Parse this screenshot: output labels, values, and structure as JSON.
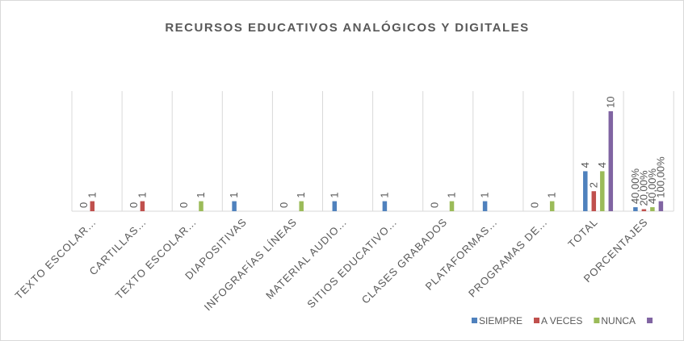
{
  "chart_data": {
    "type": "bar",
    "title": "RECURSOS EDUCATIVOS ANALÓGICOS Y DIGITALES",
    "categories": [
      "TEXTO ESCOLAR…",
      "CARTILLAS…",
      "TEXTO ESCOLAR…",
      "DIAPOSITIVAS",
      "INFOGRAFÍAS LÍNEAS",
      "MATERIAL AUDIO…",
      "SITIOS EDUCATIVO…",
      "CLASES GRABADOS",
      "PLATAFORMAS…",
      "PROGRAMAS DE…",
      "TOTAL",
      "PORCENTAJES"
    ],
    "series": [
      {
        "name": "SIEMPRE",
        "color": "#4f81bd",
        "values": [
          0,
          0,
          0,
          1,
          0,
          1,
          1,
          0,
          1,
          0,
          4,
          0.4
        ],
        "value_labels": [
          "0",
          "0",
          "0",
          "1",
          "0",
          "1",
          "1",
          "0",
          "1",
          "0",
          "4",
          "40,00%"
        ]
      },
      {
        "name": "A VECES",
        "color": "#c0504d",
        "values": [
          1,
          1,
          null,
          null,
          null,
          null,
          null,
          null,
          null,
          null,
          2,
          0.2
        ],
        "value_labels": [
          "1",
          "1",
          null,
          null,
          null,
          null,
          null,
          null,
          null,
          null,
          "2",
          "20,00%"
        ]
      },
      {
        "name": "NUNCA",
        "color": "#9bbb59",
        "values": [
          null,
          null,
          1,
          null,
          1,
          null,
          null,
          1,
          null,
          1,
          4,
          0.4
        ],
        "value_labels": [
          null,
          null,
          "1",
          null,
          "1",
          null,
          null,
          "1",
          null,
          "1",
          "4",
          "40,00%"
        ]
      },
      {
        "name": null,
        "color": "#8064a2",
        "values": [
          null,
          null,
          null,
          null,
          null,
          null,
          null,
          null,
          null,
          null,
          10,
          1
        ],
        "value_labels": [
          null,
          null,
          null,
          null,
          null,
          null,
          null,
          null,
          null,
          null,
          "10",
          "100,00%"
        ]
      }
    ],
    "legend": "bottom-right"
  }
}
